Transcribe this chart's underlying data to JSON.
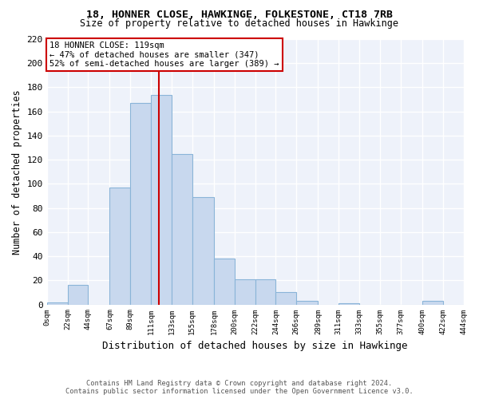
{
  "title1": "18, HONNER CLOSE, HAWKINGE, FOLKESTONE, CT18 7RB",
  "title2": "Size of property relative to detached houses in Hawkinge",
  "xlabel": "Distribution of detached houses by size in Hawkinge",
  "ylabel": "Number of detached properties",
  "bar_color": "#c8d8ee",
  "bar_edge_color": "#8ab4d8",
  "vline_color": "#cc0000",
  "vline_x": 119,
  "annotation_title": "18 HONNER CLOSE: 119sqm",
  "annotation_line1": "← 47% of detached houses are smaller (347)",
  "annotation_line2": "52% of semi-detached houses are larger (389) →",
  "footnote1": "Contains HM Land Registry data © Crown copyright and database right 2024.",
  "footnote2": "Contains public sector information licensed under the Open Government Licence v3.0.",
  "bin_edges": [
    0,
    22,
    44,
    67,
    89,
    111,
    133,
    155,
    178,
    200,
    222,
    244,
    266,
    289,
    311,
    333,
    355,
    377,
    400,
    422,
    444
  ],
  "bin_counts": [
    2,
    16,
    0,
    97,
    167,
    174,
    125,
    89,
    38,
    21,
    21,
    10,
    3,
    0,
    1,
    0,
    0,
    0,
    3,
    0
  ],
  "ylim": [
    0,
    220
  ],
  "yticks": [
    0,
    20,
    40,
    60,
    80,
    100,
    120,
    140,
    160,
    180,
    200,
    220
  ],
  "background_color": "#eef2fa",
  "tick_labels": [
    "0sqm",
    "22sqm",
    "44sqm",
    "67sqm",
    "89sqm",
    "111sqm",
    "133sqm",
    "155sqm",
    "178sqm",
    "200sqm",
    "222sqm",
    "244sqm",
    "266sqm",
    "289sqm",
    "311sqm",
    "333sqm",
    "355sqm",
    "377sqm",
    "400sqm",
    "422sqm",
    "444sqm"
  ]
}
